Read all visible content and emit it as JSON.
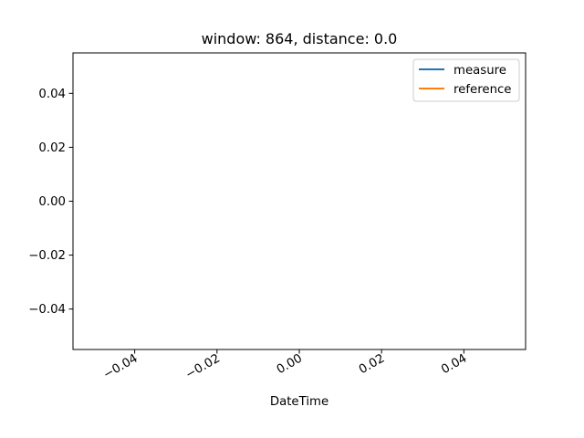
{
  "chart_data": {
    "type": "line",
    "title": "window: 864, distance: 0.0",
    "xlabel": "DateTime",
    "ylabel": "",
    "xlim": [
      -0.055,
      0.055
    ],
    "ylim": [
      -0.055,
      0.055
    ],
    "x_ticks": [
      -0.04,
      -0.02,
      0.0,
      0.02,
      0.04
    ],
    "x_tick_labels": [
      "−0.04",
      "−0.02",
      "0.00",
      "0.02",
      "0.04"
    ],
    "y_ticks": [
      0.04,
      0.02,
      0.0,
      -0.02,
      -0.04
    ],
    "y_tick_labels": [
      "0.04",
      "0.02",
      "0.00",
      "−0.02",
      "−0.04"
    ],
    "grid": false,
    "legend_position": "top-right",
    "series": [
      {
        "name": "measure",
        "color": "#1f77b4",
        "x": [],
        "y": []
      },
      {
        "name": "reference",
        "color": "#ff7f0e",
        "x": [],
        "y": []
      }
    ]
  }
}
